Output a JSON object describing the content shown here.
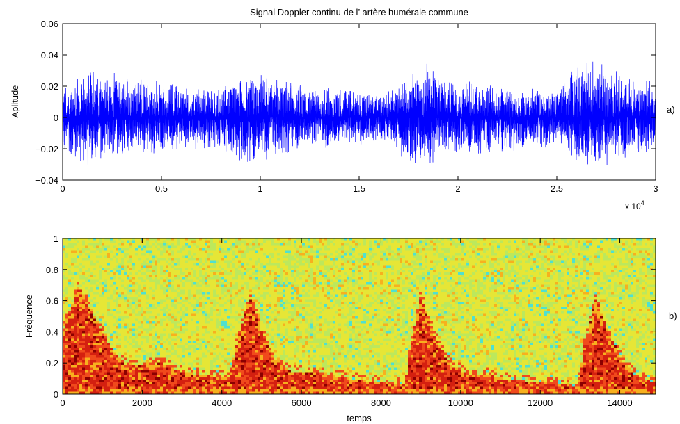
{
  "chart_data": [
    {
      "type": "line",
      "panel_label": "a)",
      "title": "Signal Doppler continu de l’ artère humérale commune",
      "xlabel": "",
      "ylabel": "Aplitude",
      "x_multiplier_label": "x 10",
      "x_multiplier_exponent": "4",
      "xlim": [
        0,
        30000
      ],
      "ylim": [
        -0.04,
        0.06
      ],
      "x_ticks": [
        0,
        5000,
        10000,
        15000,
        20000,
        25000,
        30000
      ],
      "x_tick_labels": [
        "0",
        "0.5",
        "1",
        "1.5",
        "2",
        "2.5",
        "3"
      ],
      "y_ticks": [
        -0.04,
        -0.02,
        0,
        0.02,
        0.04,
        0.06
      ],
      "y_tick_labels": [
        "−0.04",
        "−0.02",
        "0",
        "0.02",
        "0.04",
        "0.06"
      ],
      "line_color": "#0000ff",
      "series": [
        {
          "x": [
            0,
            1000,
            2000,
            3000,
            4000,
            5000,
            6000,
            7000,
            8000,
            8800,
            9500,
            10500,
            11500,
            12500,
            13500,
            14500,
            15500,
            16500,
            17500,
            18200,
            19000,
            20000,
            21000,
            22000,
            23000,
            24000,
            25000,
            26000,
            27000,
            28000,
            29000,
            30000
          ],
          "envelope": [
            0.025,
            0.034,
            0.032,
            0.028,
            0.026,
            0.025,
            0.024,
            0.022,
            0.021,
            0.03,
            0.033,
            0.028,
            0.025,
            0.022,
            0.021,
            0.02,
            0.018,
            0.018,
            0.032,
            0.037,
            0.031,
            0.027,
            0.025,
            0.023,
            0.022,
            0.021,
            0.02,
            0.035,
            0.038,
            0.033,
            0.027,
            0.025
          ]
        }
      ]
    },
    {
      "type": "heatmap",
      "panel_label": "b)",
      "title": "",
      "xlabel": "temps",
      "ylabel": "Fréquence",
      "xlim": [
        0,
        14900
      ],
      "ylim": [
        0,
        1
      ],
      "x_ticks": [
        0,
        2000,
        4000,
        6000,
        8000,
        10000,
        12000,
        14000
      ],
      "x_tick_labels": [
        "0",
        "2000",
        "4000",
        "6000",
        "8000",
        "10000",
        "12000",
        "14000"
      ],
      "y_ticks": [
        0,
        0.2,
        0.4,
        0.6,
        0.8,
        1
      ],
      "y_tick_labels": [
        "0",
        "0.2",
        "0.4",
        "0.6",
        "0.8",
        "1"
      ],
      "colormap": [
        "#8b0000",
        "#d42010",
        "#f04a1c",
        "#f7b01e",
        "#e6e636",
        "#bce85c",
        "#4fe0d0"
      ],
      "spectral_envelope": {
        "x": [
          0,
          400,
          800,
          1200,
          1600,
          2000,
          2500,
          3000,
          3600,
          4200,
          4350,
          4700,
          5000,
          5400,
          5800,
          6300,
          6800,
          7500,
          8200,
          8600,
          8750,
          9000,
          9300,
          9700,
          10200,
          10700,
          11200,
          11800,
          12500,
          12950,
          13100,
          13400,
          13700,
          14100,
          14500,
          14900
        ],
        "f": [
          0.4,
          0.7,
          0.5,
          0.3,
          0.18,
          0.18,
          0.2,
          0.14,
          0.12,
          0.11,
          0.3,
          0.62,
          0.4,
          0.2,
          0.14,
          0.14,
          0.12,
          0.09,
          0.07,
          0.06,
          0.3,
          0.63,
          0.4,
          0.2,
          0.12,
          0.13,
          0.09,
          0.08,
          0.06,
          0.05,
          0.3,
          0.62,
          0.4,
          0.2,
          0.1,
          0.08
        ]
      }
    }
  ]
}
